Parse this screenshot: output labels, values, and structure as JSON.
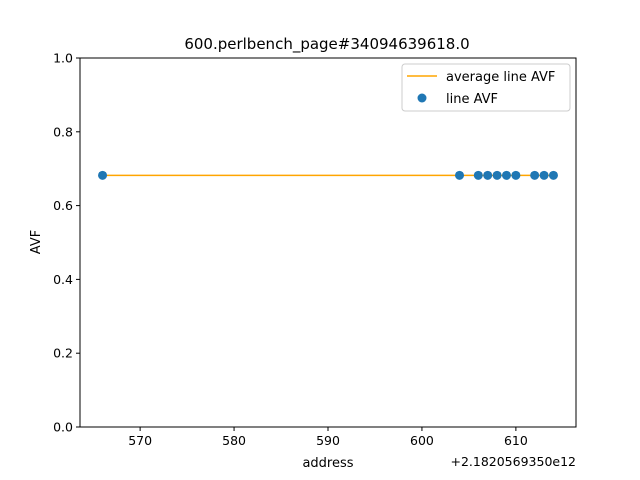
{
  "chart_data": {
    "type": "scatter",
    "title": "600.perlbench_page#34094639618.0",
    "xlabel": "address",
    "ylabel": "AVF",
    "x_offset_text": "+2.1820569350e12",
    "xlim": [
      563.6,
      616.4
    ],
    "ylim": [
      0.0,
      1.0
    ],
    "xticks": [
      570,
      580,
      590,
      600,
      610
    ],
    "yticks": [
      0.0,
      0.2,
      0.4,
      0.6,
      0.8,
      1.0
    ],
    "xtick_labels": [
      "570",
      "580",
      "590",
      "600",
      "610"
    ],
    "ytick_labels": [
      "0.0",
      "0.2",
      "0.4",
      "0.6",
      "0.8",
      "1.0"
    ],
    "grid": false,
    "legend_position": "top-right",
    "series": [
      {
        "name": "average line AVF",
        "kind": "line",
        "color": "#ffa500",
        "x": [
          566,
          614
        ],
        "y": [
          0.682,
          0.682
        ]
      },
      {
        "name": "line AVF",
        "kind": "scatter",
        "color": "#1f77b4",
        "x": [
          566,
          604,
          606,
          607,
          608,
          609,
          610,
          612,
          613,
          614
        ],
        "y": [
          0.682,
          0.682,
          0.682,
          0.682,
          0.682,
          0.682,
          0.682,
          0.682,
          0.682,
          0.682
        ]
      }
    ]
  }
}
